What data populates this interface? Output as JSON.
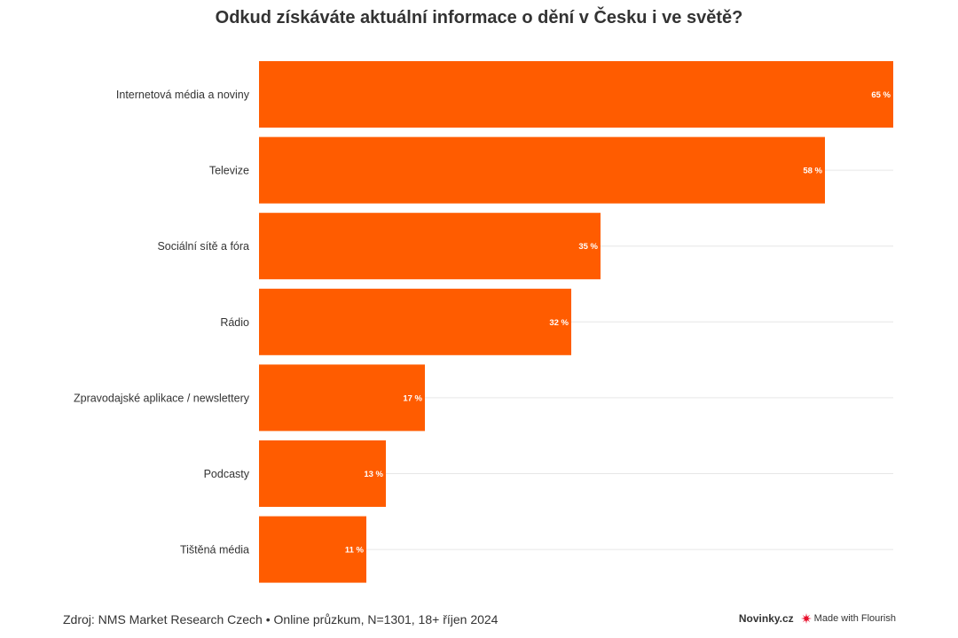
{
  "chart_data": {
    "type": "bar",
    "orientation": "horizontal",
    "title": "Odkud získáváte aktuální informace o dění v Česku i ve světě?",
    "categories": [
      "Internetová média a noviny",
      "Televize",
      "Sociální sítě a fóra",
      "Rádio",
      "Zpravodajské aplikace / newslettery",
      "Podcasty",
      "Tištěná média"
    ],
    "values": [
      65,
      58,
      35,
      32,
      17,
      13,
      11
    ],
    "value_labels": [
      "65 %",
      "58 %",
      "35 %",
      "32 %",
      "17 %",
      "13 %",
      "11 %"
    ],
    "unit": "%",
    "xlim": [
      0,
      65
    ],
    "grid": true,
    "bar_color": "#ff5c00"
  },
  "footer": {
    "source": "Zdroj: NMS Market Research Czech • Online průzkum, N=1301, 18+ říjen 2024",
    "brand": "Novinky.cz",
    "made_with": "Made with Flourish"
  },
  "colors": {
    "bar": "#ff5c00",
    "gridline": "#e6e6e6",
    "text": "#333333",
    "flourish_mark": "#e8112d"
  }
}
